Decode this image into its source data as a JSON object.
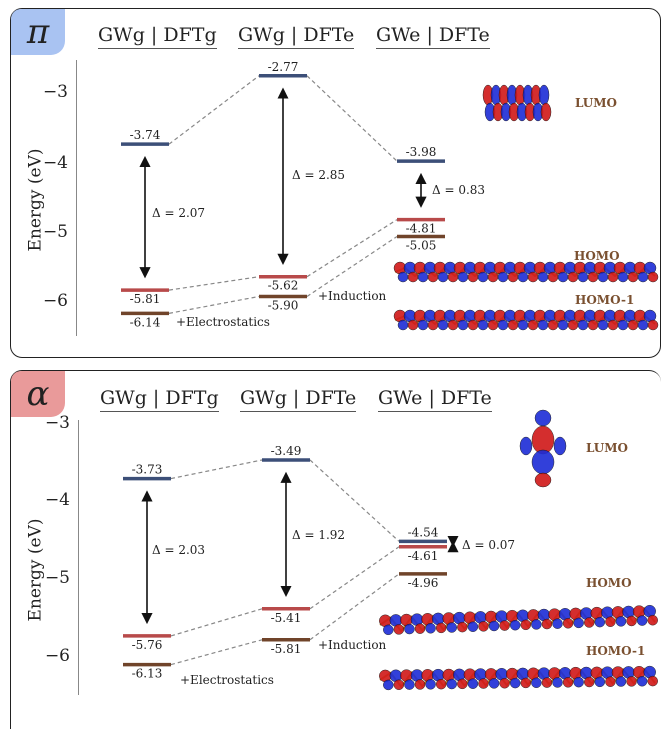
{
  "colors": {
    "lumo_level": "#3c4f78",
    "homo_level": "#b84a4a",
    "homo1_level": "#70442a",
    "pi_tab": "#a9c3f2",
    "alpha_tab": "#e99a9a",
    "orbital_pos": "#d01818",
    "orbital_neg": "#1c2cd6"
  },
  "pi": {
    "symbol": "π",
    "columns": [
      "GWg | DFTg",
      "GWg | DFTe",
      "GWe | DFTe"
    ],
    "y_axis_label": "Energy (eV)",
    "ticks": [
      "−3",
      "−4",
      "−5",
      "−6"
    ],
    "gap_labels": [
      "Δ = 2.07",
      "Δ = 2.85",
      "Δ = 0.83"
    ],
    "step_labels": [
      "+Electrostatics",
      "+Induction"
    ],
    "orbital_labels": [
      "LUMO",
      "HOMO",
      "HOMO-1"
    ]
  },
  "alpha": {
    "symbol": "α",
    "columns": [
      "GWg | DFTg",
      "GWg | DFTe",
      "GWe | DFTe"
    ],
    "y_axis_label": "Energy (eV)",
    "ticks": [
      "−3",
      "−4",
      "−5",
      "−6"
    ],
    "gap_labels": [
      "Δ = 2.03",
      "Δ = 1.92",
      "Δ = 0.07"
    ],
    "step_labels": [
      "+Electrostatics",
      "+Induction"
    ],
    "orbital_labels": [
      "LUMO",
      "HOMO",
      "HOMO-1"
    ]
  },
  "chart_data": [
    {
      "type": "energy-level-diagram",
      "title": "π",
      "ylabel": "Energy (eV)",
      "ylim": [
        -6.5,
        -2.5
      ],
      "columns": [
        "GWg | DFTg",
        "GWg | DFTe",
        "GWe | DFTe"
      ],
      "series": [
        {
          "name": "LUMO",
          "values": [
            -3.74,
            -2.77,
            -3.98
          ],
          "labels": [
            "-3.74",
            "-2.77",
            "-3.98"
          ]
        },
        {
          "name": "HOMO",
          "values": [
            -5.81,
            -5.62,
            -4.81
          ],
          "labels": [
            "-5.81",
            "-5.62",
            "-4.81"
          ]
        },
        {
          "name": "HOMO-1",
          "values": [
            -6.14,
            -5.9,
            -5.05
          ],
          "labels": [
            "-6.14",
            "-5.90",
            "-5.05"
          ]
        }
      ],
      "gaps": [
        2.07,
        2.85,
        0.83
      ]
    },
    {
      "type": "energy-level-diagram",
      "title": "α",
      "ylabel": "Energy (eV)",
      "ylim": [
        -6.5,
        -3.0
      ],
      "columns": [
        "GWg | DFTg",
        "GWg | DFTe",
        "GWe | DFTe"
      ],
      "series": [
        {
          "name": "LUMO",
          "values": [
            -3.73,
            -3.49,
            -4.54
          ],
          "labels": [
            "-3.73",
            "-3.49",
            "-4.54"
          ]
        },
        {
          "name": "HOMO",
          "values": [
            -5.76,
            -5.41,
            -4.61
          ],
          "labels": [
            "-5.76",
            "-5.41",
            "-4.61"
          ]
        },
        {
          "name": "HOMO-1",
          "values": [
            -6.13,
            -5.81,
            -4.96
          ],
          "labels": [
            "-6.13",
            "-5.81",
            "-4.96"
          ]
        }
      ],
      "gaps": [
        2.03,
        1.92,
        0.07
      ]
    }
  ]
}
